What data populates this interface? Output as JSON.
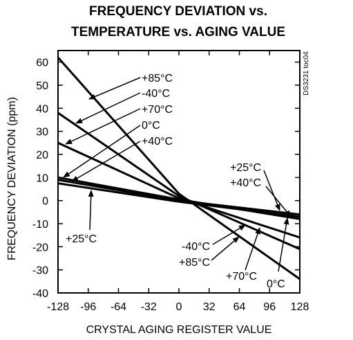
{
  "chart_data": {
    "type": "line",
    "title_line1": "FREQUENCY DEVIATION vs.",
    "title_line2": "TEMPERATURE vs. AGING VALUE",
    "xlabel": "CRYSTAL AGING REGISTER VALUE",
    "ylabel": "FREQUENCY DEVIATION (ppm)",
    "side_note": "DS3231 toc04",
    "xlim": [
      -128,
      128
    ],
    "ylim": [
      -40,
      65
    ],
    "x_ticks": [
      -128,
      -96,
      -64,
      -32,
      0,
      32,
      64,
      96,
      128
    ],
    "y_ticks": [
      -40,
      -30,
      -20,
      -10,
      0,
      10,
      20,
      30,
      40,
      50,
      60
    ],
    "grid": false,
    "legend": "none",
    "series": [
      {
        "name": "+85°C",
        "points": [
          [
            -128,
            62
          ],
          [
            0,
            3
          ],
          [
            128,
            -34
          ]
        ]
      },
      {
        "name": "-40°C",
        "points": [
          [
            -128,
            38
          ],
          [
            0,
            2
          ],
          [
            128,
            -21
          ]
        ]
      },
      {
        "name": "+70°C",
        "points": [
          [
            -128,
            25
          ],
          [
            0,
            1
          ],
          [
            128,
            -16
          ]
        ]
      },
      {
        "name": "0°C",
        "points": [
          [
            -128,
            10
          ],
          [
            0,
            0.5
          ],
          [
            128,
            -8
          ]
        ]
      },
      {
        "name": "+40°C",
        "points": [
          [
            -128,
            9
          ],
          [
            0,
            0
          ],
          [
            128,
            -6
          ]
        ]
      },
      {
        "name": "+25°C",
        "points": [
          [
            -128,
            7.5
          ],
          [
            0,
            -0.5
          ],
          [
            128,
            -7
          ]
        ]
      }
    ],
    "annotations": [
      {
        "text": "+85°C",
        "target_series": "+85°C"
      },
      {
        "text": "-40°C",
        "target_series": "-40°C"
      },
      {
        "text": "+70°C",
        "target_series": "+70°C"
      },
      {
        "text": "0°C",
        "target_series": "0°C"
      },
      {
        "text": "+40°C",
        "target_series": "+40°C"
      },
      {
        "text": "+25°C",
        "target_series": "+25°C"
      },
      {
        "text": "+25°C",
        "target_series": "+25°C"
      },
      {
        "text": "+40°C",
        "target_series": "+40°C"
      },
      {
        "text": "-40°C",
        "target_series": "-40°C"
      },
      {
        "text": "+85°C",
        "target_series": "+85°C"
      },
      {
        "text": "+70°C",
        "target_series": "+70°C"
      },
      {
        "text": "0°C",
        "target_series": "0°C"
      }
    ]
  }
}
